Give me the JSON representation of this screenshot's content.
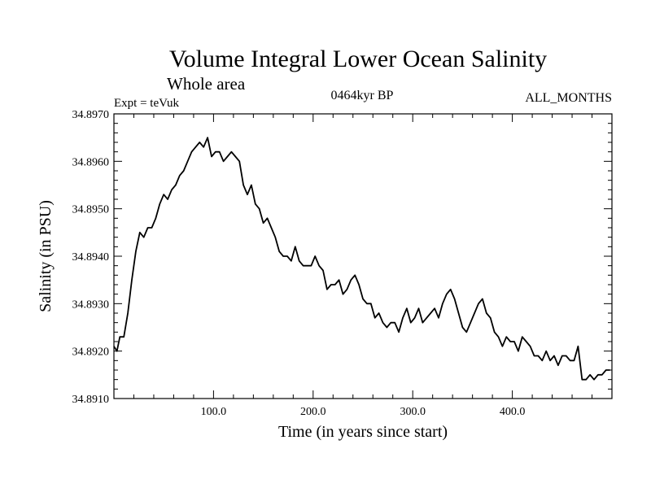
{
  "chart_data": {
    "type": "line",
    "title": "Volume Integral Lower Ocean Salinity",
    "subtitle": "Whole area",
    "annotations": {
      "experiment": "Expt = teVuk",
      "period": "0464kyr BP",
      "months": "ALL_MONTHS"
    },
    "xlabel": "Time (in years since start)",
    "ylabel": "Salinity (in PSU)",
    "xlim": [
      0,
      500
    ],
    "ylim": [
      34.891,
      34.897
    ],
    "xticks": [
      100,
      200,
      300,
      400
    ],
    "xtick_labels": [
      "100.0",
      "200.0",
      "300.0",
      "400.0"
    ],
    "yticks": [
      34.891,
      34.892,
      34.893,
      34.894,
      34.895,
      34.896,
      34.897
    ],
    "ytick_labels": [
      "34.8910",
      "34.8920",
      "34.8930",
      "34.8940",
      "34.8950",
      "34.8960",
      "34.8970"
    ],
    "grid": false,
    "line_color": "#000000",
    "series": [
      {
        "x": [
          0,
          3,
          6,
          10,
          14,
          18,
          22,
          26,
          30,
          34,
          38,
          42,
          46,
          50,
          54,
          58,
          62,
          66,
          70,
          74,
          78,
          82,
          86,
          90,
          94,
          98,
          102,
          106,
          110,
          114,
          118,
          122,
          126,
          130,
          134,
          138,
          142,
          146,
          150,
          154,
          158,
          162,
          166,
          170,
          174,
          178,
          182,
          186,
          190,
          194,
          198,
          202,
          206,
          210,
          214,
          218,
          222,
          226,
          230,
          234,
          238,
          242,
          246,
          250,
          254,
          258,
          262,
          266,
          270,
          274,
          278,
          282,
          286,
          290,
          294,
          298,
          302,
          306,
          310,
          314,
          318,
          322,
          326,
          330,
          334,
          338,
          342,
          346,
          350,
          354,
          358,
          362,
          366,
          370,
          374,
          378,
          382,
          386,
          390,
          394,
          398,
          402,
          406,
          410,
          414,
          418,
          422,
          426,
          430,
          434,
          438,
          442,
          446,
          450,
          454,
          458,
          462,
          466,
          470,
          474,
          478,
          482,
          486,
          490,
          494,
          498
        ],
        "y": [
          34.8921,
          34.892,
          34.8923,
          34.8923,
          34.8928,
          34.8935,
          34.8941,
          34.8945,
          34.8944,
          34.8946,
          34.8946,
          34.8948,
          34.8951,
          34.8953,
          34.8952,
          34.8954,
          34.8955,
          34.8957,
          34.8958,
          34.896,
          34.8962,
          34.8963,
          34.8964,
          34.8963,
          34.8965,
          34.8961,
          34.8962,
          34.8962,
          34.896,
          34.8961,
          34.8962,
          34.8961,
          34.896,
          34.8955,
          34.8953,
          34.8955,
          34.8951,
          34.895,
          34.8947,
          34.8948,
          34.8946,
          34.8944,
          34.8941,
          34.894,
          34.894,
          34.8939,
          34.8942,
          34.8939,
          34.8938,
          34.8938,
          34.8938,
          34.894,
          34.8938,
          34.8937,
          34.8933,
          34.8934,
          34.8934,
          34.8935,
          34.8932,
          34.8933,
          34.8935,
          34.8936,
          34.8934,
          34.8931,
          34.893,
          34.893,
          34.8927,
          34.8928,
          34.8926,
          34.8925,
          34.8926,
          34.8926,
          34.8924,
          34.8927,
          34.8929,
          34.8926,
          34.8927,
          34.8929,
          34.8926,
          34.8927,
          34.8928,
          34.8929,
          34.8927,
          34.893,
          34.8932,
          34.8933,
          34.8931,
          34.8928,
          34.8925,
          34.8924,
          34.8926,
          34.8928,
          34.893,
          34.8931,
          34.8928,
          34.8927,
          34.8924,
          34.8923,
          34.8921,
          34.8923,
          34.8922,
          34.8922,
          34.892,
          34.8923,
          34.8922,
          34.8921,
          34.8919,
          34.8919,
          34.8918,
          34.892,
          34.8918,
          34.8919,
          34.8917,
          34.8919,
          34.8919,
          34.8918,
          34.8918,
          34.8921,
          34.8914,
          34.8914,
          34.8915,
          34.8914,
          34.8915,
          34.8915,
          34.8916,
          34.8916
        ]
      }
    ]
  }
}
